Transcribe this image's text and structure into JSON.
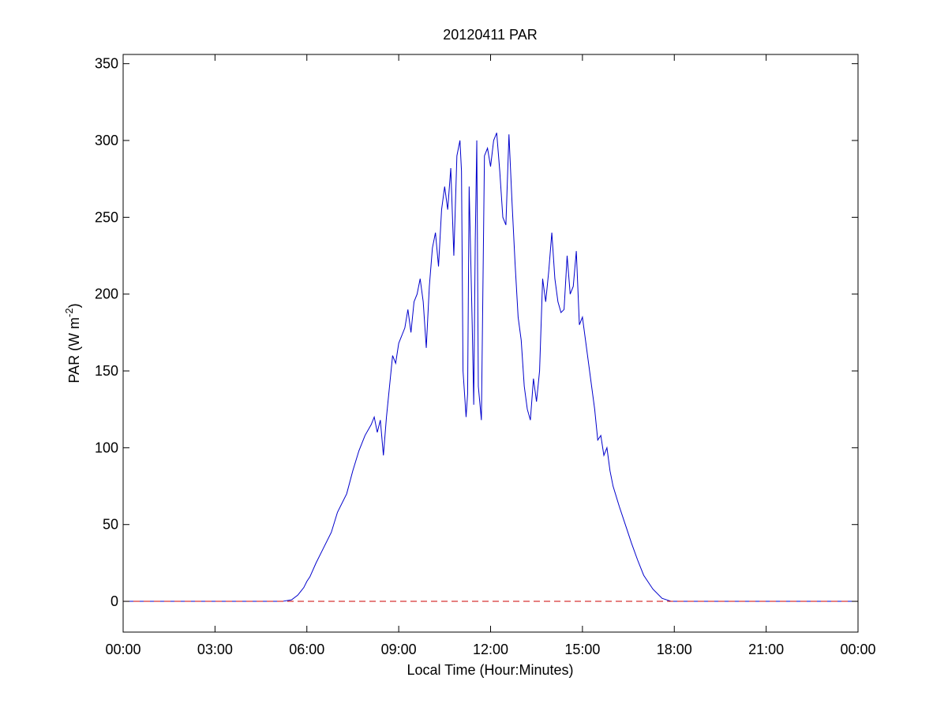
{
  "chart_data": {
    "type": "line",
    "title": "20120411 PAR",
    "xlabel": "Local Time (Hour:Minutes)",
    "ylabel": {
      "main": "PAR (W m",
      "superscript": "-2",
      "close": ")"
    },
    "xlim": [
      0,
      24
    ],
    "ylim": [
      -20,
      356
    ],
    "x_tick_values": [
      0,
      3,
      6,
      9,
      12,
      15,
      18,
      21,
      24
    ],
    "x_tick_labels": [
      "00:00",
      "03:00",
      "06:00",
      "09:00",
      "12:00",
      "15:00",
      "18:00",
      "21:00",
      "00:00"
    ],
    "y_tick_values": [
      0,
      50,
      100,
      150,
      200,
      250,
      300,
      350
    ],
    "y_tick_labels": [
      "0",
      "50",
      "100",
      "150",
      "200",
      "250",
      "300",
      "350"
    ],
    "grid": false,
    "series": [
      {
        "color": "#0000cc",
        "style": "solid",
        "x": [
          0,
          5.2,
          5.5,
          5.7,
          5.9,
          6.0,
          6.1,
          6.3,
          6.5,
          6.8,
          7.0,
          7.3,
          7.5,
          7.7,
          7.9,
          8.1,
          8.2,
          8.3,
          8.4,
          8.5,
          8.6,
          8.7,
          8.8,
          8.9,
          9.0,
          9.2,
          9.3,
          9.4,
          9.5,
          9.6,
          9.7,
          9.8,
          9.9,
          10.0,
          10.1,
          10.2,
          10.3,
          10.4,
          10.5,
          10.6,
          10.7,
          10.8,
          10.9,
          11.0,
          11.05,
          11.1,
          11.2,
          11.25,
          11.3,
          11.4,
          11.45,
          11.5,
          11.55,
          11.6,
          11.7,
          11.8,
          11.9,
          12.0,
          12.1,
          12.2,
          12.3,
          12.4,
          12.5,
          12.6,
          12.7,
          12.8,
          12.9,
          13.0,
          13.1,
          13.2,
          13.3,
          13.4,
          13.5,
          13.6,
          13.7,
          13.8,
          13.9,
          14.0,
          14.1,
          14.2,
          14.3,
          14.4,
          14.5,
          14.6,
          14.7,
          14.8,
          14.9,
          15.0,
          15.1,
          15.2,
          15.3,
          15.4,
          15.5,
          15.6,
          15.7,
          15.8,
          15.9,
          16.0,
          16.2,
          16.4,
          16.6,
          16.8,
          17.0,
          17.3,
          17.6,
          17.9,
          18.1,
          18.3,
          18.5,
          18.7,
          24
        ],
        "y": [
          0,
          0,
          1,
          4,
          9,
          13,
          16,
          25,
          33,
          45,
          58,
          70,
          85,
          98,
          108,
          115,
          120,
          110,
          118,
          95,
          120,
          140,
          160,
          155,
          168,
          178,
          190,
          175,
          195,
          200,
          210,
          195,
          165,
          205,
          230,
          240,
          218,
          255,
          270,
          255,
          282,
          225,
          290,
          300,
          280,
          150,
          120,
          135,
          270,
          180,
          128,
          235,
          300,
          140,
          118,
          290,
          295,
          283,
          300,
          305,
          280,
          250,
          245,
          304,
          260,
          220,
          185,
          170,
          140,
          125,
          118,
          145,
          130,
          150,
          210,
          195,
          215,
          240,
          210,
          195,
          188,
          190,
          225,
          200,
          205,
          228,
          180,
          185,
          170,
          155,
          140,
          125,
          105,
          108,
          95,
          100,
          85,
          75,
          62,
          50,
          38,
          27,
          17,
          8,
          2,
          0,
          0,
          0,
          0,
          0,
          0
        ]
      },
      {
        "color": "#cc0000",
        "style": "dashed",
        "x": [
          0,
          24
        ],
        "y": [
          0,
          0
        ]
      }
    ]
  }
}
